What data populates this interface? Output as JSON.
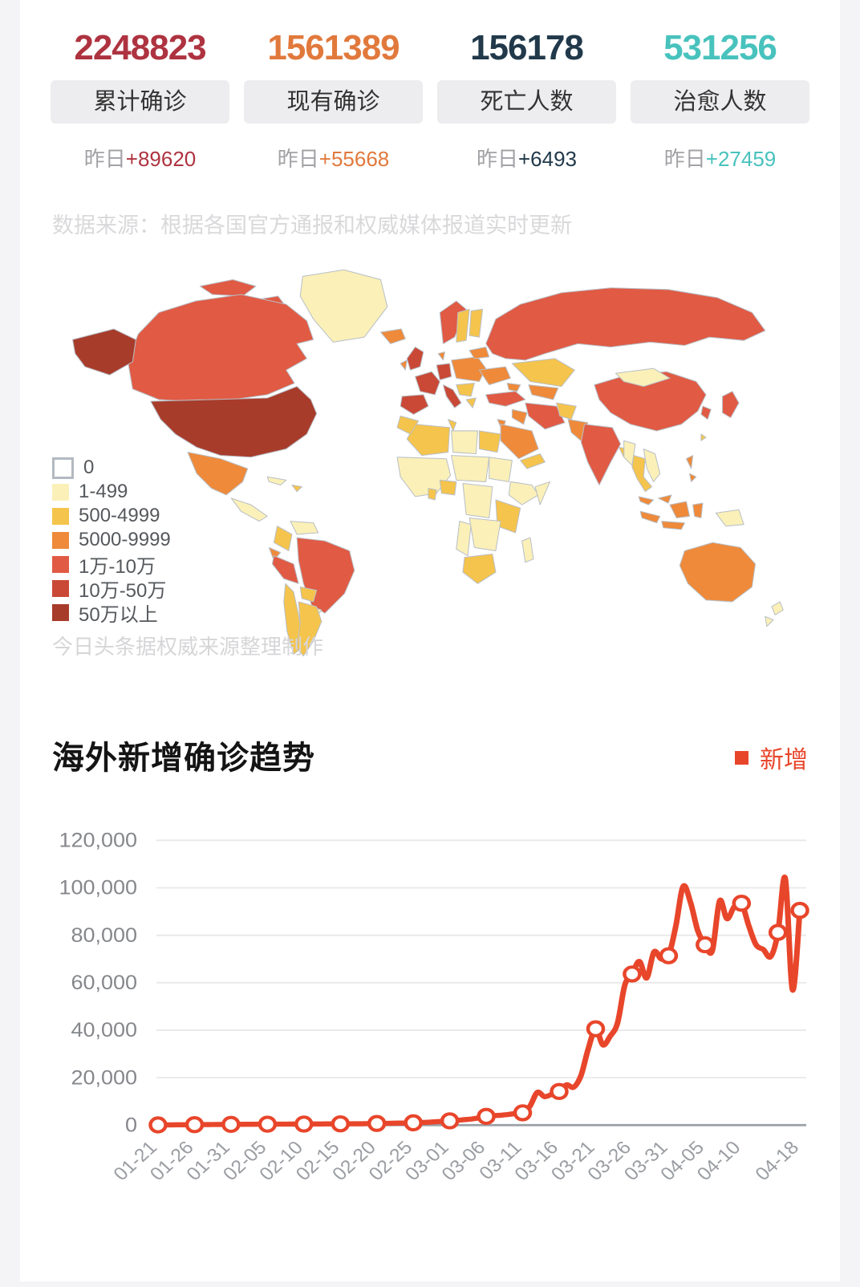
{
  "stats": {
    "items": [
      {
        "value": "2248823",
        "label": "累计确诊",
        "delta_prefix": "昨日",
        "delta": "+89620",
        "color": "#ae3340"
      },
      {
        "value": "1561389",
        "label": "现有确诊",
        "delta_prefix": "昨日",
        "delta": "+55668",
        "color": "#e1793c"
      },
      {
        "value": "156178",
        "label": "死亡人数",
        "delta_prefix": "昨日",
        "delta": "+6493",
        "color": "#21394a"
      },
      {
        "value": "531256",
        "label": "治愈人数",
        "delta_prefix": "昨日",
        "delta": "+27459",
        "color": "#48c2bd"
      }
    ]
  },
  "source_note": "数据来源：根据各国官方通报和权威媒体报道实时更新",
  "map": {
    "watermark": "今日头条据权威来源整理制作",
    "border_color": "#b9bfc7",
    "legend": [
      {
        "label": "0",
        "color": "#ffffff"
      },
      {
        "label": "1-499",
        "color": "#faf0b8"
      },
      {
        "label": "500-4999",
        "color": "#f5c44c"
      },
      {
        "label": "5000-9999",
        "color": "#ee8a3a"
      },
      {
        "label": "1万-10万",
        "color": "#e05a44"
      },
      {
        "label": "10万-50万",
        "color": "#c94936"
      },
      {
        "label": "50万以上",
        "color": "#a83c2b"
      }
    ],
    "regions": {
      "greenland": 1,
      "iceland": 3,
      "canada": 4,
      "arctic-islands": 4,
      "alaska": 6,
      "united-states": 6,
      "mexico": 3,
      "central-america": 1,
      "cuba": 1,
      "hispaniola": 2,
      "venezuela": 1,
      "colombia": 2,
      "ecuador": 3,
      "peru": 4,
      "brazil": 4,
      "bolivia": 2,
      "paraguay": 1,
      "chile": 2,
      "argentina": 2,
      "united-kingdom": 5,
      "ireland": 3,
      "norway": 4,
      "sweden": 2,
      "finland": 2,
      "denmark": 3,
      "france": 5,
      "germany": 5,
      "spain": 5,
      "italy": 5,
      "central-europe": 3,
      "balkans": 2,
      "ukraine": 3,
      "baltics": 3,
      "greece": 2,
      "turkey": 4,
      "russia": 4,
      "kazakhstan": 2,
      "central-asia": 3,
      "caucasus": 3,
      "iran": 4,
      "iraq": 3,
      "saudi-arabia": 3,
      "yemen-oman": 2,
      "levant": 3,
      "egypt": 2,
      "libya": 1,
      "algeria": 2,
      "morocco": 2,
      "tunisia": 2,
      "west-africa": 1,
      "nigeria": 2,
      "ghana": 2,
      "sahel": 1,
      "sudan": 1,
      "ethiopia": 1,
      "somalia": 1,
      "east-africa": 2,
      "congo": 1,
      "southern-africa": 1,
      "angola": 1,
      "south-africa": 2,
      "madagascar": 1,
      "afghanistan": 2,
      "pakistan": 3,
      "india": 4,
      "bangladesh": 2,
      "china": 4,
      "mongolia": 1,
      "south-korea": 4,
      "japan": 4,
      "taiwan": 2,
      "myanmar": 1,
      "thailand": 2,
      "vietnam": 1,
      "philippines": 3,
      "malaysia": 3,
      "indonesia": 3,
      "papua": 1,
      "australia": 3,
      "new-zealand": 1
    }
  },
  "chart_data": {
    "type": "line",
    "title": "海外新增确诊趋势",
    "legend_label": "新增",
    "line_color": "#e8462b",
    "grid": true,
    "legend_position": "top-right",
    "ylim": [
      0,
      130000
    ],
    "y_ticks": [
      0,
      20000,
      40000,
      60000,
      80000,
      100000,
      120000
    ],
    "x_tick_indices": [
      0,
      5,
      10,
      15,
      20,
      25,
      30,
      35,
      40,
      45,
      50,
      55,
      60,
      65,
      70,
      75,
      80,
      88
    ],
    "marker_every": 5,
    "x": [
      "01-21",
      "01-22",
      "01-23",
      "01-24",
      "01-25",
      "01-26",
      "01-27",
      "01-28",
      "01-29",
      "01-30",
      "01-31",
      "02-01",
      "02-02",
      "02-03",
      "02-04",
      "02-05",
      "02-06",
      "02-07",
      "02-08",
      "02-09",
      "02-10",
      "02-11",
      "02-12",
      "02-13",
      "02-14",
      "02-15",
      "02-16",
      "02-17",
      "02-18",
      "02-19",
      "02-20",
      "02-21",
      "02-22",
      "02-23",
      "02-24",
      "02-25",
      "02-26",
      "02-27",
      "02-28",
      "02-29",
      "03-01",
      "03-02",
      "03-03",
      "03-04",
      "03-05",
      "03-06",
      "03-07",
      "03-08",
      "03-09",
      "03-10",
      "03-11",
      "03-12",
      "03-13",
      "03-14",
      "03-15",
      "03-16",
      "03-17",
      "03-18",
      "03-19",
      "03-20",
      "03-21",
      "03-22",
      "03-23",
      "03-24",
      "03-25",
      "03-26",
      "03-27",
      "03-28",
      "03-29",
      "03-30",
      "03-31",
      "04-01",
      "04-02",
      "04-03",
      "04-04",
      "04-05",
      "04-06",
      "04-07",
      "04-08",
      "04-09",
      "04-10",
      "04-11",
      "04-12",
      "04-13",
      "04-14",
      "04-15",
      "04-16",
      "04-17",
      "04-18"
    ],
    "values": [
      100,
      120,
      130,
      150,
      180,
      200,
      220,
      250,
      270,
      300,
      320,
      350,
      360,
      380,
      400,
      400,
      420,
      430,
      450,
      460,
      470,
      480,
      500,
      520,
      540,
      550,
      560,
      580,
      600,
      650,
      700,
      750,
      800,
      850,
      900,
      1000,
      1100,
      1200,
      1400,
      1600,
      1800,
      2000,
      2300,
      2600,
      3100,
      3700,
      4000,
      4200,
      4500,
      4900,
      5200,
      8000,
      13800,
      12000,
      13000,
      14200,
      17000,
      16000,
      21000,
      32300,
      40600,
      33800,
      37500,
      43000,
      59000,
      63700,
      69000,
      62000,
      73000,
      70000,
      71400,
      84000,
      100600,
      94000,
      82000,
      76000,
      73500,
      94500,
      87000,
      92000,
      93500,
      84000,
      76000,
      74000,
      71000,
      81200,
      104000,
      57000,
      90500
    ]
  }
}
